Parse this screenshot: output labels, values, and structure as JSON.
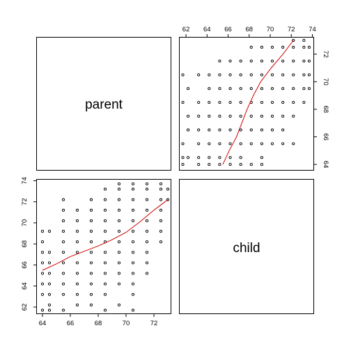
{
  "chart_data": {
    "type": "scatter",
    "kind": "pairs-matrix",
    "variables": [
      "parent",
      "child"
    ],
    "diag_labels": {
      "parent": "parent",
      "child": "child"
    },
    "axes": {
      "parent": {
        "range": [
          63.6,
          73.2
        ],
        "ticks": [
          64,
          66,
          68,
          70,
          72
        ]
      },
      "child": {
        "range": [
          61.4,
          74.1
        ],
        "ticks": [
          62,
          64,
          66,
          68,
          70,
          72,
          74
        ]
      }
    },
    "point_style": "open-circle",
    "smoother": {
      "color": "#cc0000"
    },
    "points": [
      [
        64.0,
        61.7
      ],
      [
        64.5,
        61.7
      ],
      [
        65.5,
        61.7
      ],
      [
        68.5,
        61.7
      ],
      [
        70.5,
        61.7
      ],
      [
        64.5,
        62.2
      ],
      [
        66.5,
        62.2
      ],
      [
        67.5,
        62.2
      ],
      [
        69.5,
        62.2
      ],
      [
        64.0,
        63.2
      ],
      [
        64.5,
        63.2
      ],
      [
        65.5,
        63.2
      ],
      [
        66.5,
        63.2
      ],
      [
        67.5,
        63.2
      ],
      [
        68.5,
        63.2
      ],
      [
        70.5,
        63.2
      ],
      [
        64.0,
        64.2
      ],
      [
        64.5,
        64.2
      ],
      [
        65.5,
        64.2
      ],
      [
        66.5,
        64.2
      ],
      [
        67.5,
        64.2
      ],
      [
        68.5,
        64.2
      ],
      [
        69.5,
        64.2
      ],
      [
        70.5,
        64.2
      ],
      [
        64.0,
        65.2
      ],
      [
        64.5,
        65.2
      ],
      [
        65.5,
        65.2
      ],
      [
        66.5,
        65.2
      ],
      [
        67.5,
        65.2
      ],
      [
        68.5,
        65.2
      ],
      [
        69.5,
        65.2
      ],
      [
        70.5,
        65.2
      ],
      [
        71.5,
        65.2
      ],
      [
        64.0,
        66.2
      ],
      [
        64.5,
        66.2
      ],
      [
        65.5,
        66.2
      ],
      [
        66.5,
        66.2
      ],
      [
        67.5,
        66.2
      ],
      [
        68.5,
        66.2
      ],
      [
        69.5,
        66.2
      ],
      [
        70.5,
        66.2
      ],
      [
        71.5,
        66.2
      ],
      [
        64.0,
        67.2
      ],
      [
        64.5,
        67.2
      ],
      [
        65.5,
        67.2
      ],
      [
        66.5,
        67.2
      ],
      [
        67.5,
        67.2
      ],
      [
        68.5,
        67.2
      ],
      [
        69.5,
        67.2
      ],
      [
        70.5,
        67.2
      ],
      [
        71.5,
        67.2
      ],
      [
        64.0,
        68.2
      ],
      [
        65.5,
        68.2
      ],
      [
        66.5,
        68.2
      ],
      [
        67.5,
        68.2
      ],
      [
        68.5,
        68.2
      ],
      [
        69.5,
        68.2
      ],
      [
        70.5,
        68.2
      ],
      [
        71.5,
        68.2
      ],
      [
        72.5,
        68.2
      ],
      [
        64.0,
        69.2
      ],
      [
        64.5,
        69.2
      ],
      [
        65.5,
        69.2
      ],
      [
        66.5,
        69.2
      ],
      [
        67.5,
        69.2
      ],
      [
        68.5,
        69.2
      ],
      [
        69.5,
        69.2
      ],
      [
        70.5,
        69.2
      ],
      [
        71.5,
        69.2
      ],
      [
        72.5,
        69.2
      ],
      [
        65.5,
        70.2
      ],
      [
        66.5,
        70.2
      ],
      [
        67.5,
        70.2
      ],
      [
        68.5,
        70.2
      ],
      [
        69.5,
        70.2
      ],
      [
        70.5,
        70.2
      ],
      [
        71.5,
        70.2
      ],
      [
        72.5,
        70.2
      ],
      [
        65.5,
        71.2
      ],
      [
        66.5,
        71.2
      ],
      [
        67.5,
        71.2
      ],
      [
        68.5,
        71.2
      ],
      [
        69.5,
        71.2
      ],
      [
        70.5,
        71.2
      ],
      [
        71.5,
        71.2
      ],
      [
        72.5,
        71.2
      ],
      [
        65.5,
        72.2
      ],
      [
        67.5,
        72.2
      ],
      [
        68.5,
        72.2
      ],
      [
        69.5,
        72.2
      ],
      [
        70.5,
        72.2
      ],
      [
        71.5,
        72.2
      ],
      [
        72.5,
        72.2
      ],
      [
        73.0,
        72.2
      ],
      [
        68.5,
        73.2
      ],
      [
        69.5,
        73.2
      ],
      [
        70.5,
        73.2
      ],
      [
        71.5,
        73.2
      ],
      [
        72.5,
        73.2
      ],
      [
        73.0,
        73.2
      ],
      [
        69.5,
        73.7
      ],
      [
        70.5,
        73.7
      ],
      [
        71.5,
        73.7
      ],
      [
        72.5,
        73.7
      ]
    ],
    "smooth_curve": [
      [
        64.0,
        65.5
      ],
      [
        65.0,
        66.1
      ],
      [
        66.0,
        66.8
      ],
      [
        67.0,
        67.3
      ],
      [
        68.0,
        67.8
      ],
      [
        69.0,
        68.4
      ],
      [
        70.0,
        69.1
      ],
      [
        71.0,
        70.1
      ],
      [
        72.0,
        71.2
      ],
      [
        73.0,
        72.2
      ]
    ]
  }
}
